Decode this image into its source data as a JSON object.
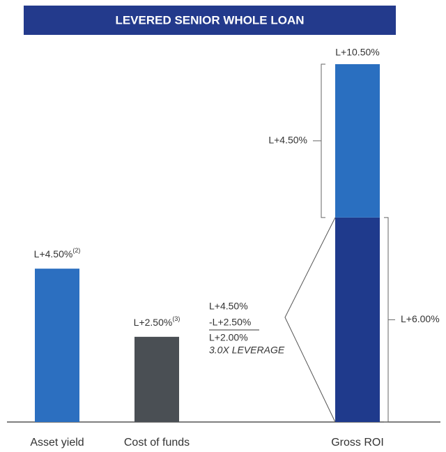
{
  "chart_data": {
    "type": "bar",
    "title": "LEVERED SENIOR WHOLE LOAN",
    "categories": [
      "Asset yield",
      "Cost of funds",
      "Gross ROI"
    ],
    "ylim": [
      0,
      10.5
    ],
    "series": [
      {
        "color": "#2c6fc0",
        "values": [
          4.5,
          null,
          null
        ],
        "value_labels": [
          "L+4.50%",
          null,
          null
        ],
        "footnotes": [
          "(2)",
          null,
          null
        ]
      },
      {
        "color": "#4a4f54",
        "values": [
          null,
          2.5,
          null
        ],
        "value_labels": [
          null,
          "L+2.50%",
          null
        ],
        "footnotes": [
          null,
          "(3)",
          null
        ]
      },
      {
        "color": "#1f3a8c",
        "values": [
          null,
          null,
          6.0
        ],
        "value_labels": [
          null,
          null,
          "L+6.00%"
        ]
      },
      {
        "color": "#2a6fc0",
        "values": [
          null,
          null,
          4.5
        ],
        "value_labels": [
          null,
          null,
          "L+4.50%"
        ]
      }
    ],
    "total": {
      "value": 10.5,
      "label": "L+10.50%"
    },
    "annotation": [
      "L+4.50%",
      "-L+2.50%",
      "L+2.00%",
      "3.0X LEVERAGE"
    ]
  }
}
